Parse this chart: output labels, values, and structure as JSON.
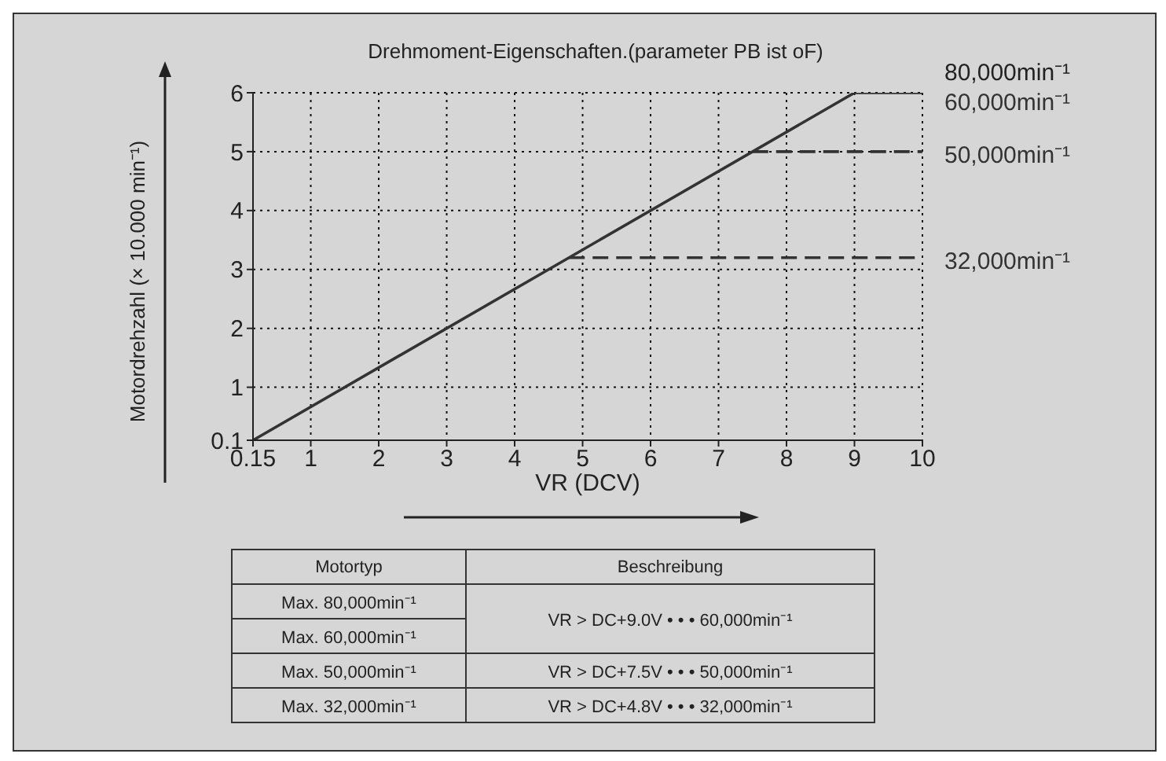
{
  "chart_data": {
    "type": "line",
    "title": "Drehmoment-Eigenschaften.(parameter PB ist oF)",
    "xlabel": "VR (DCV)",
    "ylabel": "Motordrehzahl (× 10.000 min⁻¹)",
    "series": [
      {
        "name": "60,000min⁻¹",
        "color": "#333333",
        "x": [
          0.15,
          9,
          10
        ],
        "values": [
          0.1,
          6,
          6
        ],
        "line_style": "solid"
      },
      {
        "name": "50,000min⁻¹",
        "color": "#333333",
        "x": [
          7.5,
          10
        ],
        "values": [
          5,
          5
        ],
        "line_style": "dashed"
      },
      {
        "name": "32,000min⁻¹",
        "color": "#333333",
        "x": [
          4.8,
          10
        ],
        "values": [
          3.2,
          3.2
        ],
        "line_style": "dashed"
      }
    ],
    "xlim": [
      0.15,
      10
    ],
    "xticks": [
      0.15,
      1,
      2,
      3,
      4,
      5,
      6,
      7,
      8,
      9,
      10
    ],
    "ylim": [
      0.1,
      6
    ],
    "yticks": [
      0.1,
      1,
      2,
      3,
      4,
      5,
      6
    ],
    "grid": true,
    "marker": "none",
    "legend": false,
    "annotations": [
      "80,000min⁻¹",
      "Motortyp",
      "Beschreibung",
      "Max. 80,000min⁻¹",
      "Max. 60,000min⁻¹",
      "VR > DC+9.0V • • • 60,000min⁻¹",
      "Max. 50,000min⁻¹",
      "VR > DC+7.5V • • • 50,000min⁻¹",
      "Max. 32,000min⁻¹",
      "VR > DC+4.8V • • • 32,000min⁻¹"
    ]
  }
}
